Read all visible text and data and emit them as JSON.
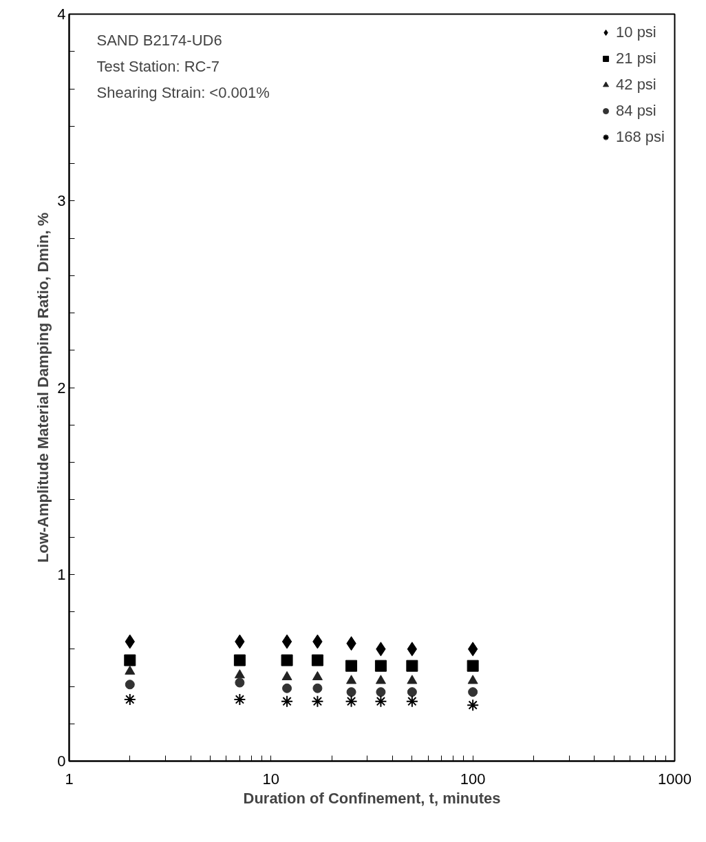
{
  "chart_data": {
    "type": "scatter",
    "xlabel": "Duration of Confinement, t, minutes",
    "ylabel": "Low-Amplitude Material Damping Ratio, Dmin, %",
    "annotations": [
      "SAND B2174-UD6",
      "Test Station: RC-7",
      "Shearing Strain: <0.001%"
    ],
    "log": "x",
    "grid": false,
    "legend": "top right",
    "x": [
      2,
      7,
      12,
      17,
      25,
      35,
      50,
      100
    ],
    "xlim": [
      1,
      1000
    ],
    "xticks": [
      1,
      {
        "value": 2,
        "label": null
      },
      {
        "value": 3,
        "label": null
      },
      {
        "value": 4,
        "label": null
      },
      {
        "value": 5,
        "label": null
      },
      {
        "value": 6,
        "label": null
      },
      {
        "value": 7,
        "label": null
      },
      {
        "value": 8,
        "label": null
      },
      {
        "value": 9,
        "label": null
      },
      10,
      {
        "value": 20,
        "label": null
      },
      {
        "value": 30,
        "label": null
      },
      {
        "value": 40,
        "label": null
      },
      {
        "value": 50,
        "label": null
      },
      {
        "value": 60,
        "label": null
      },
      {
        "value": 70,
        "label": null
      },
      {
        "value": 80,
        "label": null
      },
      {
        "value": 90,
        "label": null
      },
      100,
      {
        "value": 200,
        "label": null
      },
      {
        "value": 300,
        "label": null
      },
      {
        "value": 400,
        "label": null
      },
      {
        "value": 500,
        "label": null
      },
      {
        "value": 600,
        "label": null
      },
      {
        "value": 700,
        "label": null
      },
      {
        "value": 800,
        "label": null
      },
      {
        "value": 900,
        "label": null
      },
      1000
    ],
    "ylim": [
      0,
      4
    ],
    "yticks": [
      0,
      {
        "value": 0.2,
        "label": null
      },
      {
        "value": 0.4,
        "label": null
      },
      {
        "value": 0.6,
        "label": null
      },
      {
        "value": 0.8,
        "label": null
      },
      1,
      {
        "value": 1.2,
        "label": null
      },
      {
        "value": 1.4,
        "label": null
      },
      {
        "value": 1.6,
        "label": null
      },
      {
        "value": 1.8,
        "label": null
      },
      2,
      {
        "value": 2.2,
        "label": null
      },
      {
        "value": 2.4,
        "label": null
      },
      {
        "value": 2.6,
        "label": null
      },
      {
        "value": 2.8,
        "label": null
      },
      3,
      {
        "value": 3.2,
        "label": null
      },
      {
        "value": 3.4,
        "label": null
      },
      {
        "value": 3.6,
        "label": null
      },
      {
        "value": 3.8,
        "label": null
      },
      4
    ],
    "series": [
      {
        "name": "10 psi",
        "color": "#000000",
        "marker": "diamond",
        "values": [
          0.64,
          0.64,
          0.64,
          0.64,
          0.63,
          0.6,
          0.6,
          0.6
        ]
      },
      {
        "name": "21 psi",
        "color": "#000000",
        "marker": "square",
        "values": [
          0.54,
          0.54,
          0.54,
          0.54,
          0.51,
          0.51,
          0.51,
          0.51
        ]
      },
      {
        "name": "42 psi",
        "color": "#222222",
        "marker": "triangle",
        "values": [
          0.48,
          0.46,
          0.45,
          0.45,
          0.43,
          0.43,
          0.43,
          0.43
        ]
      },
      {
        "name": "84 psi",
        "color": "#333333",
        "marker": "circle",
        "values": [
          0.41,
          0.42,
          0.39,
          0.39,
          0.37,
          0.37,
          0.37,
          0.37
        ]
      },
      {
        "name": "168 psi",
        "color": "#000000",
        "marker": "cross",
        "values": [
          0.33,
          0.33,
          0.32,
          0.32,
          0.32,
          0.32,
          0.32,
          0.3
        ]
      }
    ]
  }
}
